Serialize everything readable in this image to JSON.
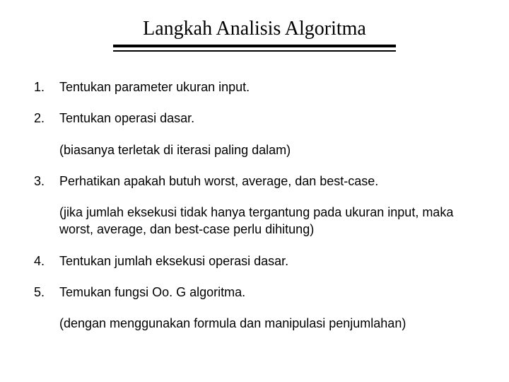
{
  "title": "Langkah Analisis Algoritma",
  "colors": {
    "background": "#ffffff",
    "text": "#000000",
    "rule": "#000000"
  },
  "typography": {
    "title_font": "serif",
    "title_size_pt": 21,
    "body_font": "Arial",
    "body_size_pt": 14
  },
  "items": [
    {
      "text": "Tentukan parameter ukuran input.",
      "note": null
    },
    {
      "text": "Tentukan operasi dasar.",
      "note": "(biasanya terletak di iterasi paling dalam)"
    },
    {
      "text": "Perhatikan apakah butuh worst, average, dan best-case.",
      "note": "(jika jumlah eksekusi tidak hanya tergantung pada ukuran input, maka worst, average, dan best-case perlu dihitung)"
    },
    {
      "text": "Tentukan jumlah eksekusi operasi dasar.",
      "note": null
    },
    {
      "text": "Temukan fungsi Oo. G algoritma.",
      "note": "(dengan menggunakan formula dan manipulasi penjumlahan)"
    }
  ]
}
